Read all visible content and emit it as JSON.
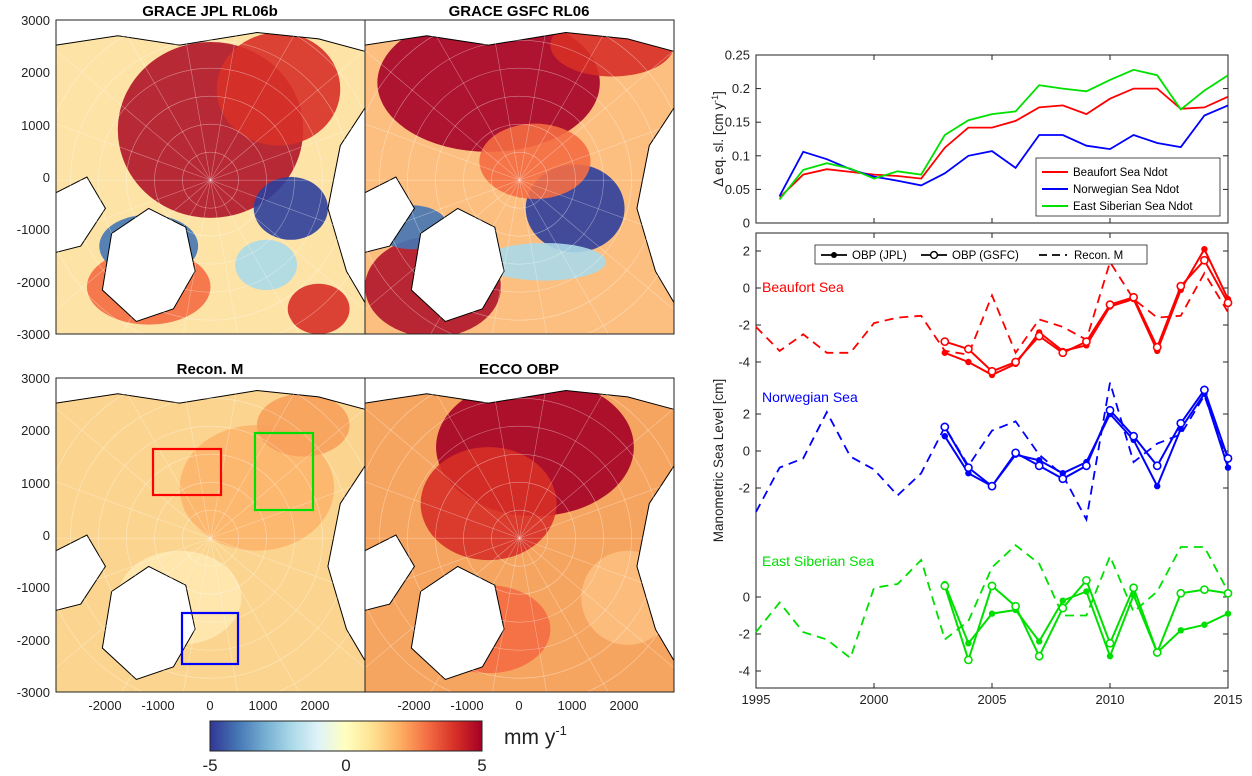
{
  "maps": {
    "panels": [
      {
        "id": "grace-jpl",
        "title": "GRACE JPL RL06b"
      },
      {
        "id": "grace-gsfc",
        "title": "GRACE GSFC RL06"
      },
      {
        "id": "recon-m",
        "title": "Recon. M"
      },
      {
        "id": "ecco-obp",
        "title": "ECCO OBP"
      }
    ],
    "y_ticks": [
      "3000",
      "2000",
      "1000",
      "0",
      "-1000",
      "-2000",
      "-3000"
    ],
    "x_ticks": [
      "-2000",
      "-1000",
      "0",
      "1000",
      "2000"
    ],
    "boxes": [
      {
        "region": "Beaufort Sea",
        "color": "#ff0000"
      },
      {
        "region": "East Siberian Sea",
        "color": "#00e000"
      },
      {
        "region": "Norwegian Sea",
        "color": "#0000ff"
      }
    ],
    "colorbar": {
      "min": -5,
      "max": 5,
      "tick_labels": [
        "-5",
        "0",
        "5"
      ],
      "units": "mm y",
      "units_exponent": "-1",
      "colors": [
        "#313695",
        "#4575b4",
        "#74add1",
        "#abd9e9",
        "#e0f3f8",
        "#ffffbf",
        "#fee090",
        "#fdae61",
        "#f46d43",
        "#d73027",
        "#a50026"
      ]
    }
  },
  "chart_data": [
    {
      "type": "line",
      "ylabel": "Δ eq. sl. [cm y",
      "ylabel_exponent": "-1",
      "ylabel_suffix": "]",
      "ylim": [
        0,
        0.25
      ],
      "xlim": [
        1995,
        2015
      ],
      "y_tick_labels": [
        "0",
        "0.05",
        "0.1",
        "0.15",
        "0.2",
        "0.25"
      ],
      "legend_position": "bottom-right",
      "x": [
        1996,
        1997,
        1998,
        1999,
        2000,
        2001,
        2002,
        2003,
        2004,
        2005,
        2006,
        2007,
        2008,
        2009,
        2010,
        2011,
        2012,
        2013,
        2014,
        2015
      ],
      "series": [
        {
          "name": "Beaufort Sea Ndot",
          "color": "#ff0000",
          "values": [
            0.038,
            0.072,
            0.08,
            0.076,
            0.072,
            0.07,
            0.066,
            0.112,
            0.142,
            0.142,
            0.152,
            0.172,
            0.175,
            0.162,
            0.185,
            0.2,
            0.2,
            0.17,
            0.172,
            0.188
          ]
        },
        {
          "name": "Norwegian Sea Ndot",
          "color": "#0000ff",
          "values": [
            0.04,
            0.106,
            0.095,
            0.08,
            0.069,
            0.063,
            0.056,
            0.074,
            0.1,
            0.107,
            0.082,
            0.131,
            0.131,
            0.115,
            0.11,
            0.131,
            0.119,
            0.113,
            0.16,
            0.175
          ]
        },
        {
          "name": "East Siberian Sea Ndot",
          "color": "#00e000",
          "values": [
            0.035,
            0.079,
            0.089,
            0.081,
            0.066,
            0.077,
            0.072,
            0.131,
            0.153,
            0.162,
            0.166,
            0.205,
            0.2,
            0.196,
            0.213,
            0.228,
            0.22,
            0.169,
            0.197,
            0.22
          ]
        }
      ]
    },
    {
      "type": "line",
      "ylabel": "Manometric Sea Level [cm]",
      "xlim": [
        1995,
        2015
      ],
      "x_tick_labels": [
        "1995",
        "2000",
        "2005",
        "2010",
        "2015"
      ],
      "legend_position": "top",
      "legend": [
        "OBP (JPL)",
        "OBP (GSFC)",
        "Recon. M"
      ],
      "y_tick_labels": [
        "2",
        "0",
        "-2",
        "-4"
      ],
      "groups": [
        {
          "label": "Beaufort Sea",
          "color": "#ff0000",
          "recon": {
            "x": [
              1995,
              1996,
              1997,
              1998,
              1999,
              2000,
              2001,
              2002,
              2003,
              2004,
              2005,
              2006,
              2007,
              2008,
              2009,
              2010,
              2011,
              2012,
              2013,
              2014,
              2015
            ],
            "y": [
              -2.1,
              -3.4,
              -2.5,
              -3.5,
              -3.5,
              -1.9,
              -1.6,
              -1.5,
              -3.4,
              -3.6,
              -0.4,
              -3.5,
              -1.7,
              -2.1,
              -2.8,
              1.4,
              -0.6,
              -1.6,
              -1.5,
              0.8,
              -1.3
            ]
          },
          "jpl": {
            "x": [
              2003,
              2004,
              2005,
              2006,
              2007,
              2008,
              2009,
              2010,
              2011,
              2012,
              2013,
              2014,
              2015
            ],
            "y": [
              -3.5,
              -4.0,
              -4.7,
              -4.1,
              -2.4,
              -3.4,
              -3.1,
              -1.0,
              -0.6,
              -3.4,
              -0.1,
              2.1,
              -0.6
            ]
          },
          "gsfc": {
            "x": [
              2003,
              2004,
              2005,
              2006,
              2007,
              2008,
              2009,
              2010,
              2011,
              2012,
              2013,
              2014,
              2015
            ],
            "y": [
              -2.9,
              -3.3,
              -4.5,
              -4.0,
              -2.6,
              -3.5,
              -2.9,
              -0.9,
              -0.5,
              -3.2,
              0.1,
              1.5,
              -0.8
            ]
          }
        },
        {
          "label": "Norwegian Sea",
          "color": "#0000ff",
          "recon": {
            "x": [
              1995,
              1996,
              1997,
              1998,
              1999,
              2000,
              2001,
              2002,
              2003,
              2004,
              2005,
              2006,
              2007,
              2008,
              2009,
              2010,
              2011,
              2012,
              2013,
              2014,
              2015
            ],
            "y": [
              -3.3,
              -0.9,
              -0.4,
              2.1,
              -0.3,
              -1.0,
              -2.4,
              -1.2,
              1.3,
              -0.8,
              1.1,
              1.6,
              -0.2,
              -1.3,
              -3.7,
              3.7,
              -0.6,
              0.4,
              0.9,
              3.0,
              -0.7
            ]
          },
          "jpl": {
            "x": [
              2003,
              2004,
              2005,
              2006,
              2007,
              2008,
              2009,
              2010,
              2011,
              2012,
              2013,
              2014,
              2015
            ],
            "y": [
              0.8,
              -1.2,
              -1.9,
              -0.2,
              -0.5,
              -1.2,
              -0.6,
              2.0,
              0.6,
              -1.9,
              1.2,
              3.1,
              -0.9
            ]
          },
          "gsfc": {
            "x": [
              2003,
              2004,
              2005,
              2006,
              2007,
              2008,
              2009,
              2010,
              2011,
              2012,
              2013,
              2014,
              2015
            ],
            "y": [
              1.3,
              -0.9,
              -1.9,
              -0.1,
              -0.8,
              -1.5,
              -0.8,
              2.2,
              0.8,
              -0.8,
              1.5,
              3.3,
              -0.4
            ]
          }
        },
        {
          "label": "East Siberian Sea",
          "color": "#00e000",
          "recon": {
            "x": [
              1995,
              1996,
              1997,
              1998,
              1999,
              2000,
              2001,
              2002,
              2003,
              2004,
              2005,
              2006,
              2007,
              2008,
              2009,
              2010,
              2011,
              2012,
              2013,
              2014,
              2015
            ],
            "y": [
              -1.9,
              -0.3,
              -1.9,
              -2.3,
              -3.3,
              0.5,
              0.7,
              2.0,
              -2.3,
              -1.3,
              1.6,
              2.8,
              1.8,
              -1.0,
              -1.0,
              2.2,
              -0.8,
              0.3,
              2.7,
              2.7,
              0.3
            ]
          },
          "jpl": {
            "x": [
              2003,
              2004,
              2005,
              2006,
              2007,
              2008,
              2009,
              2010,
              2011,
              2012,
              2013,
              2014,
              2015
            ],
            "y": [
              0.7,
              -2.5,
              -0.9,
              -0.7,
              -2.4,
              -0.2,
              0.3,
              -3.2,
              0.1,
              -3.0,
              -1.8,
              -1.5,
              -0.9
            ]
          },
          "gsfc": {
            "x": [
              2003,
              2004,
              2005,
              2006,
              2007,
              2008,
              2009,
              2010,
              2011,
              2012,
              2013,
              2014,
              2015
            ],
            "y": [
              0.6,
              -3.4,
              0.6,
              -0.5,
              -3.2,
              -0.6,
              0.9,
              -2.5,
              0.5,
              -3.0,
              0.2,
              0.4,
              0.2
            ]
          }
        }
      ]
    }
  ]
}
